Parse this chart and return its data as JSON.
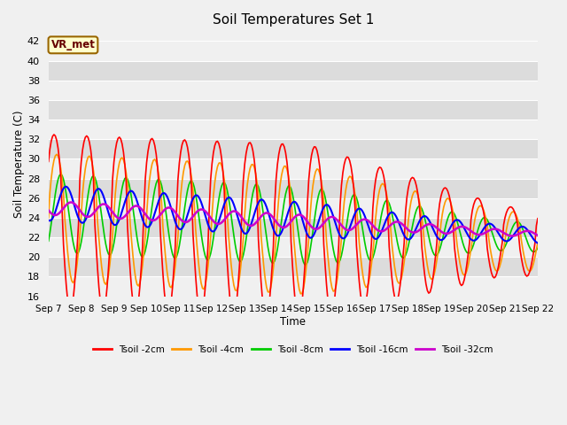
{
  "title": "Soil Temperatures Set 1",
  "xlabel": "Time",
  "ylabel": "Soil Temperature (C)",
  "ylim": [
    16,
    43
  ],
  "yticks": [
    16,
    18,
    20,
    22,
    24,
    26,
    28,
    30,
    32,
    34,
    36,
    38,
    40,
    42
  ],
  "x_labels": [
    "Sep 7",
    "Sep 8",
    "Sep 9",
    "Sep 10",
    "Sep 11",
    "Sep 12",
    "Sep 13",
    "Sep 14",
    "Sep 15",
    "Sep 16",
    "Sep 17",
    "Sep 18",
    "Sep 19",
    "Sep 20",
    "Sep 21",
    "Sep 22"
  ],
  "bg_light": "#f0f0f0",
  "bg_dark": "#dcdcdc",
  "grid_color": "#ffffff",
  "annotation_text": "VR_met",
  "annotation_bg": "#ffffcc",
  "annotation_border": "#996600",
  "colors": {
    "2cm": "#ff0000",
    "4cm": "#ff9900",
    "8cm": "#00cc00",
    "16cm": "#0000ff",
    "32cm": "#cc00cc"
  },
  "legend_labels": [
    "Tsoil -2cm",
    "Tsoil -4cm",
    "Tsoil -8cm",
    "Tsoil -16cm",
    "Tsoil -32cm"
  ],
  "figsize": [
    6.4,
    4.8
  ],
  "dpi": 100
}
